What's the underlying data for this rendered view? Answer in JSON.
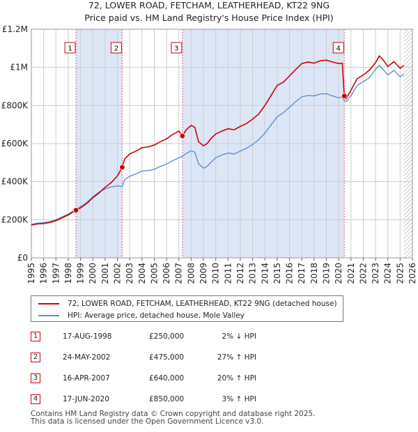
{
  "chart_data": {
    "type": "line",
    "title": "72, LOWER ROAD, FETCHAM, LEATHERHEAD, KT22 9NG",
    "subtitle": "Price paid vs. HM Land Registry's House Price Index (HPI)",
    "xlim": [
      1995,
      2026
    ],
    "ylim": [
      0,
      1200000
    ],
    "x_ticks": [
      "1995",
      "1996",
      "1997",
      "1998",
      "1999",
      "2000",
      "2001",
      "2002",
      "2003",
      "2004",
      "2005",
      "2006",
      "2007",
      "2008",
      "2009",
      "2010",
      "2011",
      "2012",
      "2013",
      "2014",
      "2015",
      "2016",
      "2017",
      "2018",
      "2019",
      "2020",
      "2021",
      "2022",
      "2023",
      "2024",
      "2025",
      "2026"
    ],
    "y_ticks": [
      {
        "value": 0,
        "label": "£0"
      },
      {
        "value": 200000,
        "label": "£200K"
      },
      {
        "value": 400000,
        "label": "£400K"
      },
      {
        "value": 600000,
        "label": "£600K"
      },
      {
        "value": 800000,
        "label": "£800K"
      },
      {
        "value": 1000000,
        "label": "£1M"
      },
      {
        "value": 1200000,
        "label": "£1.2M"
      }
    ],
    "series": [
      {
        "name": "72, LOWER ROAD, FETCHAM, LEATHERHEAD, KT22 9NG (detached house)",
        "color": "#cc0000",
        "x": [
          1995.0,
          1995.5,
          1996.0,
          1996.5,
          1997.0,
          1997.5,
          1998.0,
          1998.63,
          1999.0,
          1999.5,
          2000.0,
          2000.5,
          2001.0,
          2001.5,
          2002.0,
          2002.39,
          2002.6,
          2003.0,
          2003.5,
          2004.0,
          2004.5,
          2005.0,
          2005.5,
          2006.0,
          2006.5,
          2007.0,
          2007.29,
          2007.6,
          2008.0,
          2008.3,
          2008.6,
          2009.0,
          2009.3,
          2009.6,
          2010.0,
          2010.5,
          2011.0,
          2011.5,
          2012.0,
          2012.5,
          2013.0,
          2013.5,
          2014.0,
          2014.5,
          2015.0,
          2015.5,
          2016.0,
          2016.5,
          2017.0,
          2017.5,
          2018.0,
          2018.5,
          2019.0,
          2019.5,
          2020.0,
          2020.3,
          2020.46,
          2020.6,
          2021.0,
          2021.5,
          2022.0,
          2022.5,
          2023.0,
          2023.3,
          2023.6,
          2024.0,
          2024.5,
          2025.0,
          2025.3
        ],
        "y": [
          172000,
          178000,
          180000,
          185000,
          195000,
          210000,
          225000,
          250000,
          262000,
          285000,
          315000,
          340000,
          370000,
          395000,
          430000,
          475000,
          520000,
          545000,
          560000,
          578000,
          582000,
          592000,
          610000,
          625000,
          648000,
          665000,
          640000,
          672000,
          695000,
          685000,
          610000,
          588000,
          600000,
          625000,
          650000,
          665000,
          678000,
          672000,
          690000,
          705000,
          728000,
          755000,
          800000,
          852000,
          905000,
          922000,
          955000,
          988000,
          1020000,
          1028000,
          1022000,
          1035000,
          1038000,
          1028000,
          1020000,
          1022000,
          850000,
          835000,
          880000,
          940000,
          960000,
          985000,
          1025000,
          1060000,
          1040000,
          1005000,
          1030000,
          995000,
          1010000
        ]
      },
      {
        "name": "HPI: Average price, detached house, Mole Valley",
        "color": "#5b8fd0",
        "x": [
          1995.0,
          1995.5,
          1996.0,
          1996.5,
          1997.0,
          1997.5,
          1998.0,
          1998.63,
          1999.0,
          1999.5,
          2000.0,
          2000.5,
          2001.0,
          2001.5,
          2002.0,
          2002.39,
          2002.6,
          2003.0,
          2003.5,
          2004.0,
          2004.5,
          2005.0,
          2005.5,
          2006.0,
          2006.5,
          2007.0,
          2007.29,
          2007.6,
          2008.0,
          2008.3,
          2008.6,
          2009.0,
          2009.3,
          2009.6,
          2010.0,
          2010.5,
          2011.0,
          2011.5,
          2012.0,
          2012.5,
          2013.0,
          2013.5,
          2014.0,
          2014.5,
          2015.0,
          2015.5,
          2016.0,
          2016.5,
          2017.0,
          2017.5,
          2018.0,
          2018.5,
          2019.0,
          2019.5,
          2020.0,
          2020.3,
          2020.46,
          2020.6,
          2021.0,
          2021.5,
          2022.0,
          2022.5,
          2023.0,
          2023.3,
          2023.6,
          2024.0,
          2024.5,
          2025.0,
          2025.3
        ],
        "y": [
          176000,
          182000,
          185000,
          190000,
          200000,
          215000,
          230000,
          255000,
          268000,
          290000,
          320000,
          345000,
          362000,
          372000,
          378000,
          374000,
          410000,
          428000,
          440000,
          455000,
          458000,
          465000,
          480000,
          492000,
          510000,
          525000,
          533000,
          548000,
          562000,
          555000,
          495000,
          470000,
          480000,
          500000,
          525000,
          540000,
          550000,
          545000,
          560000,
          575000,
          595000,
          620000,
          655000,
          698000,
          740000,
          762000,
          790000,
          820000,
          845000,
          852000,
          850000,
          860000,
          862000,
          850000,
          840000,
          845000,
          825000,
          820000,
          850000,
          905000,
          925000,
          945000,
          990000,
          1012000,
          990000,
          960000,
          985000,
          950000,
          965000
        ]
      }
    ],
    "sales": [
      {
        "label": "1",
        "x": 1998.63,
        "price": 250000,
        "date": "17-AUG-1998",
        "price_text": "£250,000",
        "hpi_text": "2% ↓ HPI"
      },
      {
        "label": "2",
        "x": 2002.39,
        "price": 475000,
        "date": "24-MAY-2002",
        "price_text": "£475,000",
        "hpi_text": "27% ↑ HPI"
      },
      {
        "label": "3",
        "x": 2007.29,
        "price": 640000,
        "date": "16-APR-2007",
        "price_text": "£640,000",
        "hpi_text": "20% ↑ HPI"
      },
      {
        "label": "4",
        "x": 2020.46,
        "price": 850000,
        "date": "17-JUN-2020",
        "price_text": "£850,000",
        "hpi_text": "3% ↑ HPI"
      }
    ],
    "shaded_periods": [
      [
        1998.63,
        2002.39
      ],
      [
        2007.29,
        2020.46
      ]
    ],
    "forecast_start": 2025.3,
    "colors": {
      "price_line": "#cc0000",
      "hpi_line": "#5b8fd0",
      "shade": "#dce6f6",
      "grid": "#cccccc",
      "vline": "#e06080"
    }
  },
  "legend": {
    "price_label": "72, LOWER ROAD, FETCHAM, LEATHERHEAD, KT22 9NG (detached house)",
    "hpi_label": "HPI: Average price, detached house, Mole Valley"
  },
  "footer": {
    "line1": "Contains HM Land Registry data © Crown copyright and database right 2025.",
    "line2": "This data is licensed under the Open Government Licence v3.0."
  }
}
